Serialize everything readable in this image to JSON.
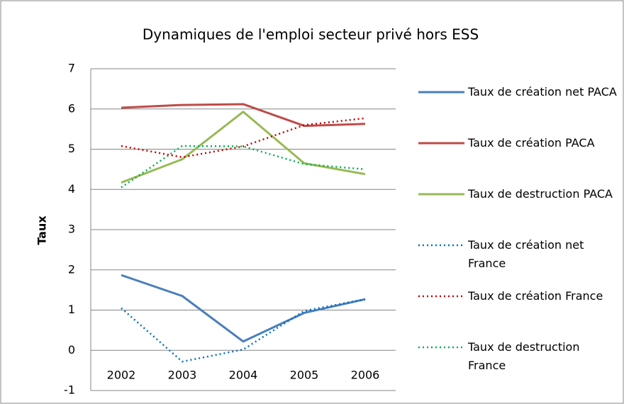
{
  "chart_data": {
    "type": "line",
    "title": "Dynamiques de l'emploi secteur privé hors ESS",
    "y_label": "Taux",
    "categories": [
      "2002",
      "2003",
      "2004",
      "2005",
      "2006"
    ],
    "series": [
      {
        "name": "Taux de création net PACA",
        "color": "#4a7ebb",
        "style": "solid",
        "values": [
          1.87,
          1.35,
          0.22,
          0.93,
          1.27
        ]
      },
      {
        "name": "Taux de création PACA",
        "color": "#be4b48",
        "style": "solid",
        "values": [
          6.03,
          6.1,
          6.12,
          5.58,
          5.63
        ]
      },
      {
        "name": "Taux de destruction PACA",
        "color": "#98b954",
        "style": "solid",
        "values": [
          4.17,
          4.75,
          5.93,
          4.65,
          4.38
        ]
      },
      {
        "name": "Taux de création net France",
        "color": "#0070c0",
        "style": "dotted",
        "values": [
          1.05,
          -0.28,
          0.02,
          0.98,
          1.27
        ]
      },
      {
        "name": "Taux de création France",
        "color": "#c00000",
        "style": "dotted",
        "values": [
          5.08,
          4.8,
          5.07,
          5.6,
          5.77
        ]
      },
      {
        "name": "Taux de destruction France",
        "color": "#00b050",
        "style": "dotted",
        "values": [
          4.05,
          5.08,
          5.07,
          4.63,
          4.5
        ]
      }
    ],
    "ylim": [
      -1,
      7
    ],
    "yticks": [
      -1,
      0,
      1,
      2,
      3,
      4,
      5,
      6,
      7
    ],
    "grid": true,
    "legend": "right"
  }
}
